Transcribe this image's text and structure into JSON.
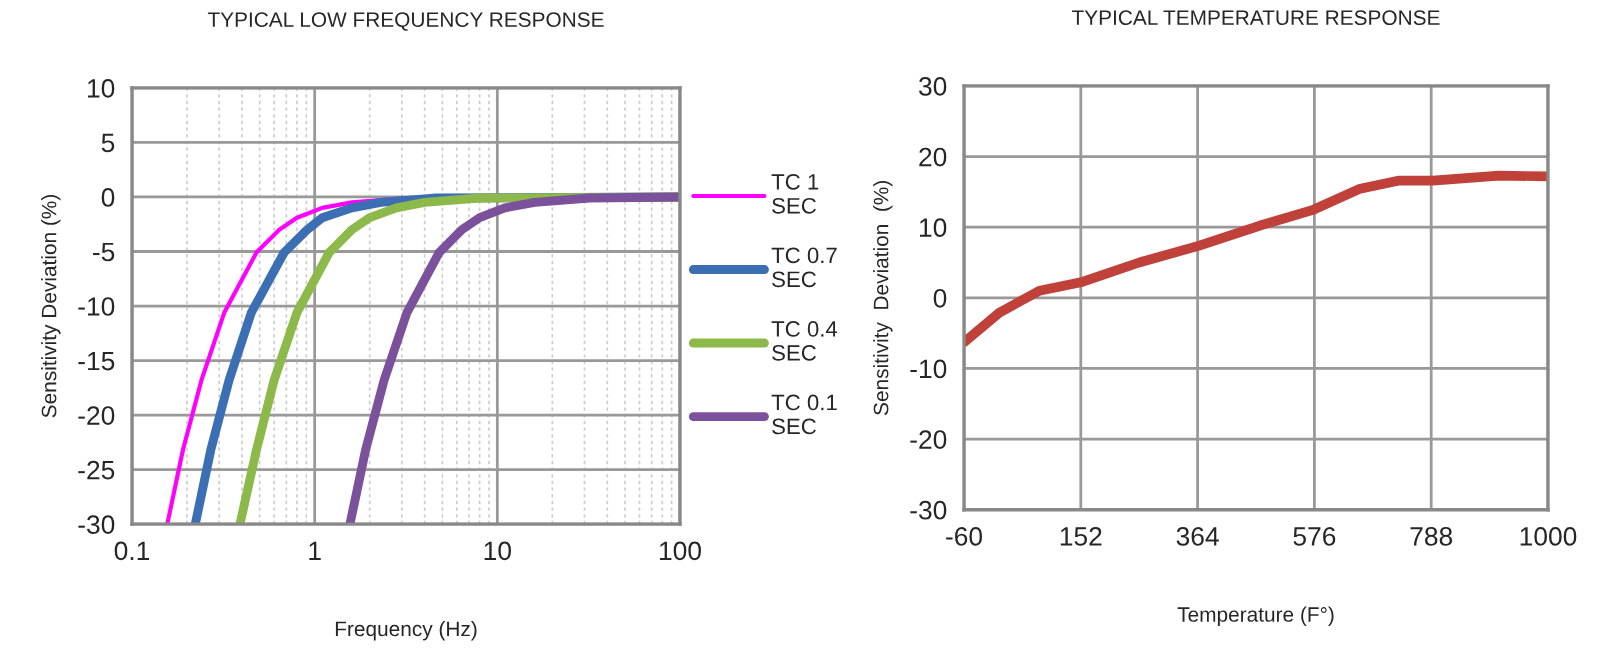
{
  "chart_data": [
    {
      "type": "line",
      "title": "TYPICAL LOW FREQUENCY RESPONSE",
      "xlabel": "Frequency (Hz)",
      "ylabel": "Sensitivity Deviation (%)",
      "log": "x",
      "xlim": [
        0.1,
        100
      ],
      "xticks": [
        0.1,
        1,
        10,
        100
      ],
      "ylim": [
        -30,
        10
      ],
      "yticks": [
        -30,
        -25,
        -20,
        -15,
        -10,
        -5,
        0,
        5,
        10
      ],
      "grid": true,
      "legend": "right",
      "marker": "none",
      "line_style": "solid",
      "series": [
        {
          "name": "TC 1\nSEC",
          "color": "#ff00ff",
          "x": [
            0.156,
            0.19,
            0.24,
            0.32,
            0.48,
            0.64,
            0.8,
            1.1,
            1.6,
            3.2,
            100
          ],
          "values": [
            -30,
            -23.2,
            -16.8,
            -10.6,
            -5.1,
            -3.0,
            -1.9,
            -1.0,
            -0.5,
            -0.1,
            0
          ]
        },
        {
          "name": "TC 0.7\nSEC",
          "color": "#3c6eb4",
          "x": [
            0.222,
            0.27,
            0.34,
            0.45,
            0.68,
            0.91,
            1.1,
            1.6,
            2.3,
            4.5,
            100
          ],
          "values": [
            -30,
            -23.2,
            -16.8,
            -10.6,
            -5.1,
            -3.0,
            -1.9,
            -1.0,
            -0.5,
            -0.1,
            0
          ]
        },
        {
          "name": "TC 0.4\nSEC",
          "color": "#8db84a",
          "x": [
            0.39,
            0.48,
            0.6,
            0.8,
            1.2,
            1.6,
            2,
            2.8,
            4,
            8,
            100
          ],
          "values": [
            -30,
            -23.2,
            -16.8,
            -10.6,
            -5.1,
            -3.0,
            -1.9,
            -1.0,
            -0.5,
            -0.1,
            0
          ]
        },
        {
          "name": "TC 0.1\nSEC",
          "color": "#7a519a",
          "x": [
            1.56,
            1.9,
            2.4,
            3.2,
            4.8,
            6.4,
            8,
            11,
            16,
            32,
            100
          ],
          "values": [
            -30,
            -23.2,
            -16.8,
            -10.6,
            -5.1,
            -3.0,
            -1.9,
            -1.0,
            -0.5,
            -0.1,
            0
          ]
        }
      ]
    },
    {
      "type": "line",
      "title": "TYPICAL TEMPERATURE RESPONSE",
      "xlabel": "Temperature (F°)",
      "ylabel": "Sensitivity  Deviation  (%)",
      "xlim": [
        -60,
        1000
      ],
      "xticks": [
        -60,
        152,
        364,
        576,
        788,
        1000
      ],
      "ylim": [
        -30,
        30
      ],
      "yticks": [
        -30,
        -20,
        -10,
        0,
        10,
        20,
        30
      ],
      "grid": true,
      "marker": "none",
      "line_style": "solid",
      "series": [
        {
          "color": "#c0403a",
          "x": [
            -60,
            4,
            77,
            152,
            258,
            367,
            476,
            575,
            657,
            730,
            791,
            911,
            1000
          ],
          "values": [
            -6.3,
            -2.1,
            1.0,
            2.2,
            5.0,
            7.4,
            10.2,
            12.5,
            15.4,
            16.6,
            16.6,
            17.3,
            17.2
          ]
        }
      ]
    }
  ]
}
